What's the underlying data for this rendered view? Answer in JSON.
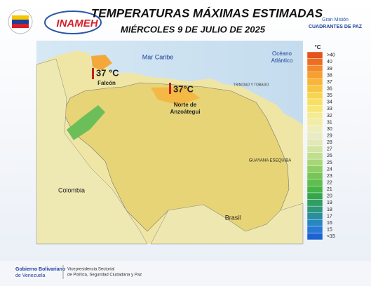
{
  "header": {
    "title": "TEMPERATURAS MÁXIMAS ESTIMADAS",
    "subtitle": "MIÉRCOLES 9 DE JULIO DE 2025",
    "logo_left": "INAMEH",
    "logo_right_top": "Gran Misión",
    "logo_right_bottom": "CUADRANTES DE PAZ"
  },
  "map": {
    "sea": "Mar Caribe",
    "ocean": [
      "Océano",
      "Atlántico"
    ],
    "countries": [
      "Colombia",
      "Brasil"
    ],
    "region": "GUAYANA ESEQUIBA",
    "island": "TRINIDAD Y TOBAGO",
    "annotations": [
      {
        "value": "37 °C",
        "place": [
          "Falcón"
        ]
      },
      {
        "value": "37°C",
        "place": [
          "Norte de",
          "Anzoátegui"
        ]
      }
    ]
  },
  "legend": {
    "unit": "°C",
    "items": [
      {
        "label": ">40",
        "color": "#e4531c"
      },
      {
        "label": "40",
        "color": "#ee6d22"
      },
      {
        "label": "39",
        "color": "#f3892a"
      },
      {
        "label": "38",
        "color": "#f6a030"
      },
      {
        "label": "37",
        "color": "#f8b53a"
      },
      {
        "label": "36",
        "color": "#f8c644"
      },
      {
        "label": "35",
        "color": "#f8d452"
      },
      {
        "label": "34",
        "color": "#f8df62"
      },
      {
        "label": "33",
        "color": "#f7e77a"
      },
      {
        "label": "32",
        "color": "#f4eb92"
      },
      {
        "label": "31",
        "color": "#f1eda8"
      },
      {
        "label": "30",
        "color": "#eeeeba"
      },
      {
        "label": "29",
        "color": "#eaebc4"
      },
      {
        "label": "28",
        "color": "#e2e8b8"
      },
      {
        "label": "27",
        "color": "#d4e4a2"
      },
      {
        "label": "26",
        "color": "#c0de8c"
      },
      {
        "label": "25",
        "color": "#a6d676"
      },
      {
        "label": "24",
        "color": "#8ece66"
      },
      {
        "label": "23",
        "color": "#76c656"
      },
      {
        "label": "22",
        "color": "#5ebe4e"
      },
      {
        "label": "21",
        "color": "#46b446"
      },
      {
        "label": "20",
        "color": "#36a64c"
      },
      {
        "label": "19",
        "color": "#2f9e62"
      },
      {
        "label": "18",
        "color": "#2e967c"
      },
      {
        "label": "17",
        "color": "#2a8ea0"
      },
      {
        "label": "16",
        "color": "#2886c0"
      },
      {
        "label": "15",
        "color": "#2878d8"
      },
      {
        "label": "<15",
        "color": "#1c62d0"
      }
    ]
  },
  "footer": {
    "left": [
      "Gobierno Bolivariano",
      "de Venezuela"
    ],
    "right": [
      "Vicepresidencia Sectorial",
      "de Política, Seguridad Ciudadana y Paz"
    ]
  }
}
